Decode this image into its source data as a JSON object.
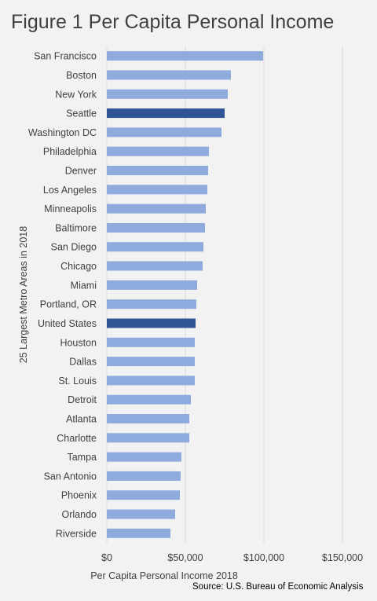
{
  "title": "Figure 1 Per Capita Personal Income",
  "source": "Source: U.S. Bureau of Economic Analysis",
  "colors": {
    "background": "#f2f2f2",
    "bar": "#8faadc",
    "bar_highlight": "#2f5597",
    "gridline": "#d9d9d9",
    "text": "#404040"
  },
  "chart_data": {
    "type": "bar",
    "orientation": "horizontal",
    "title": "Figure 1 Per Capita Personal Income",
    "xlabel": "Per Capita Personal Income 2018",
    "ylabel": "25 Largest Metro Areas in 2018",
    "xlim": [
      0,
      150000
    ],
    "x_ticks": [
      0,
      50000,
      100000,
      150000
    ],
    "x_tick_labels": [
      "$0",
      "$50,000",
      "$100,000",
      "$150,000"
    ],
    "grid": true,
    "highlighted": [
      "Seattle",
      "United States"
    ],
    "categories": [
      "San Francisco",
      "Boston",
      "New York",
      "Seattle",
      "Washington DC",
      "Philadelphia",
      "Denver",
      "Los Angeles",
      "Minneapolis",
      "Baltimore",
      "San Diego",
      "Chicago",
      "Miami",
      "Portland, OR",
      "United States",
      "Houston",
      "Dallas",
      "St. Louis",
      "Detroit",
      "Atlanta",
      "Charlotte",
      "Tampa",
      "San Antonio",
      "Phoenix",
      "Orlando",
      "Riverside"
    ],
    "values": [
      99500,
      79000,
      77000,
      75000,
      73000,
      65000,
      64500,
      64000,
      63000,
      62500,
      61500,
      61000,
      57500,
      57000,
      56500,
      56000,
      56000,
      56000,
      53500,
      52500,
      52500,
      47500,
      47000,
      46500,
      43500,
      40500
    ]
  }
}
